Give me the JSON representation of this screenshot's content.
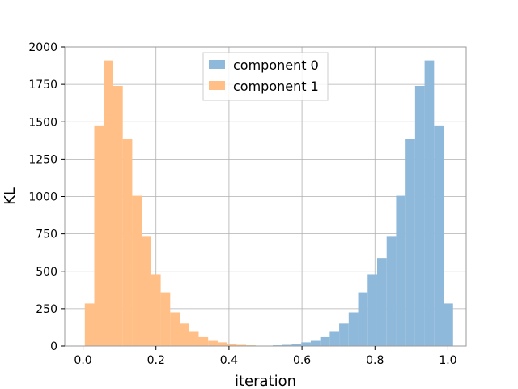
{
  "chart_data": {
    "type": "bar",
    "title": "",
    "xlabel": "iteration",
    "ylabel": "KL",
    "xlim": [
      -0.05,
      1.05
    ],
    "ylim": [
      0,
      2000
    ],
    "grid": true,
    "legend_position": "top-center",
    "x_ticks": [
      0.0,
      0.2,
      0.4,
      0.6,
      0.8,
      1.0
    ],
    "x_tick_labels": [
      "0.0",
      "0.2",
      "0.4",
      "0.6",
      "0.8",
      "1.0"
    ],
    "y_ticks": [
      0,
      250,
      500,
      750,
      1000,
      1250,
      1500,
      1750,
      2000
    ],
    "y_tick_labels": [
      "0",
      "250",
      "500",
      "750",
      "1000",
      "1250",
      "1500",
      "1750",
      "2000"
    ],
    "series": [
      {
        "name": "component 0",
        "color": "#8fb9da",
        "bins": [
          [
            0.52,
            0.546,
            5
          ],
          [
            0.546,
            0.572,
            8
          ],
          [
            0.572,
            0.598,
            12
          ],
          [
            0.598,
            0.624,
            25
          ],
          [
            0.624,
            0.65,
            35
          ],
          [
            0.65,
            0.676,
            60
          ],
          [
            0.676,
            0.702,
            95
          ],
          [
            0.702,
            0.728,
            150
          ],
          [
            0.728,
            0.754,
            225
          ],
          [
            0.754,
            0.78,
            360
          ],
          [
            0.78,
            0.806,
            480
          ],
          [
            0.806,
            0.832,
            590
          ],
          [
            0.832,
            0.858,
            735
          ],
          [
            0.858,
            0.884,
            1005
          ],
          [
            0.884,
            0.91,
            1385
          ],
          [
            0.91,
            0.936,
            1740
          ],
          [
            0.936,
            0.962,
            1910
          ],
          [
            0.962,
            0.988,
            1475
          ],
          [
            0.988,
            1.014,
            285
          ]
        ]
      },
      {
        "name": "component 1",
        "color": "#ffbf86",
        "bins": [
          [
            0.005,
            0.031,
            285
          ],
          [
            0.031,
            0.057,
            1475
          ],
          [
            0.057,
            0.083,
            1910
          ],
          [
            0.083,
            0.109,
            1740
          ],
          [
            0.109,
            0.135,
            1385
          ],
          [
            0.135,
            0.161,
            1005
          ],
          [
            0.161,
            0.187,
            735
          ],
          [
            0.187,
            0.213,
            480
          ],
          [
            0.213,
            0.239,
            360
          ],
          [
            0.239,
            0.265,
            225
          ],
          [
            0.265,
            0.291,
            150
          ],
          [
            0.291,
            0.317,
            95
          ],
          [
            0.317,
            0.343,
            60
          ],
          [
            0.343,
            0.369,
            35
          ],
          [
            0.369,
            0.395,
            25
          ],
          [
            0.395,
            0.421,
            12
          ],
          [
            0.421,
            0.447,
            8
          ],
          [
            0.447,
            0.473,
            5
          ]
        ]
      }
    ]
  }
}
